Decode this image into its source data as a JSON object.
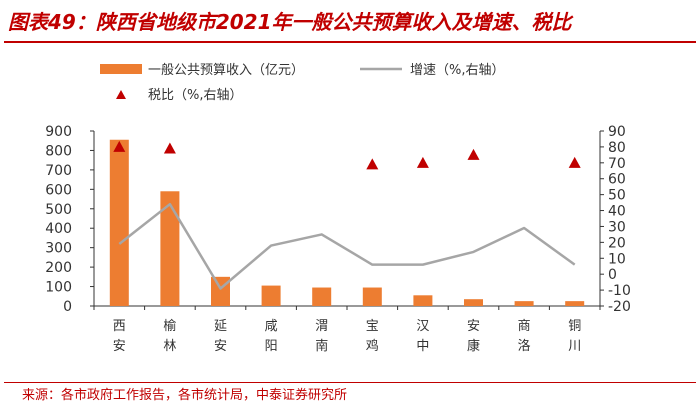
{
  "title": "图表49：陕西省地级市2021年一般公共预算收入及增速、税比",
  "source": "来源：各市政府工作报告，各市统计局，中泰证券研究所",
  "colors": {
    "bar": "#ed7d31",
    "line": "#a6a6a6",
    "marker": "#c00000",
    "axis": "#333333"
  },
  "chart_data": {
    "type": "bar",
    "categories": [
      "西安",
      "榆林",
      "延安",
      "咸阳",
      "渭南",
      "宝鸡",
      "汉中",
      "安康",
      "商洛",
      "铜川"
    ],
    "left_axis": {
      "min": 0,
      "max": 900,
      "step": 100
    },
    "right_axis": {
      "min": -20,
      "max": 90,
      "step": 10
    },
    "legend": "top",
    "series": [
      {
        "name": "一般公共预算收入（亿元）",
        "type": "bar",
        "axis": "left",
        "values": [
          855,
          590,
          150,
          105,
          95,
          95,
          55,
          35,
          25,
          25
        ]
      },
      {
        "name": "增速（%,右轴）",
        "type": "line",
        "axis": "right",
        "values": [
          19,
          44,
          -9,
          18,
          25,
          6,
          6,
          14,
          29,
          6
        ]
      },
      {
        "name": "税比（%,右轴）",
        "type": "scatter",
        "axis": "right",
        "values": [
          80,
          79,
          null,
          null,
          null,
          69,
          70,
          75,
          null,
          70
        ]
      }
    ]
  }
}
